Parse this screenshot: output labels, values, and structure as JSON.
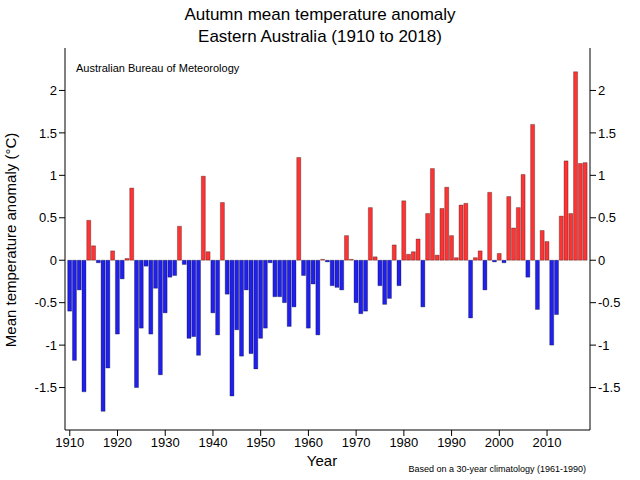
{
  "chart_data": {
    "type": "bar",
    "title": "Autumn mean temperature anomaly",
    "subtitle": "Eastern Australia (1910 to 2018)",
    "x_label": "Year",
    "y_label": "Mean temperature anomaly (°C)",
    "annotations": [
      "Australian Bureau of Meteorology",
      "Based on a 30-year climatology (1961-1990)"
    ],
    "x": [
      1910,
      1911,
      1912,
      1913,
      1914,
      1915,
      1916,
      1917,
      1918,
      1919,
      1920,
      1921,
      1922,
      1923,
      1924,
      1925,
      1926,
      1927,
      1928,
      1929,
      1930,
      1931,
      1932,
      1933,
      1934,
      1935,
      1936,
      1937,
      1938,
      1939,
      1940,
      1941,
      1942,
      1943,
      1944,
      1945,
      1946,
      1947,
      1948,
      1949,
      1950,
      1951,
      1952,
      1953,
      1954,
      1955,
      1956,
      1957,
      1958,
      1959,
      1960,
      1961,
      1962,
      1963,
      1964,
      1965,
      1966,
      1967,
      1968,
      1969,
      1970,
      1971,
      1972,
      1973,
      1974,
      1975,
      1976,
      1977,
      1978,
      1979,
      1980,
      1981,
      1982,
      1983,
      1984,
      1985,
      1986,
      1987,
      1988,
      1989,
      1990,
      1991,
      1992,
      1993,
      1994,
      1995,
      1996,
      1997,
      1998,
      1999,
      2000,
      2001,
      2002,
      2003,
      2004,
      2005,
      2006,
      2007,
      2008,
      2009,
      2010,
      2011,
      2012,
      2013,
      2014,
      2015,
      2016,
      2017,
      2018
    ],
    "values": [
      -0.6,
      -1.18,
      -0.35,
      -1.55,
      0.47,
      0.17,
      -0.03,
      -1.78,
      -1.27,
      0.11,
      -0.87,
      -0.22,
      0.02,
      0.85,
      -1.5,
      -0.8,
      -0.07,
      -0.87,
      -0.33,
      -1.35,
      -0.62,
      -0.2,
      -0.18,
      0.4,
      -0.05,
      -0.92,
      -0.9,
      -1.12,
      0.99,
      0.1,
      -0.62,
      -0.88,
      0.68,
      -0.4,
      -1.6,
      -0.82,
      -1.13,
      -0.35,
      -1.1,
      -1.28,
      -0.92,
      -0.8,
      -0.03,
      -0.43,
      -0.43,
      -0.5,
      -0.78,
      -0.55,
      1.21,
      -0.18,
      -0.8,
      -0.28,
      -0.88,
      0.01,
      -0.02,
      -0.3,
      -0.32,
      -0.35,
      0.29,
      0.01,
      -0.5,
      -0.63,
      -0.6,
      0.62,
      0.04,
      -0.3,
      -0.52,
      -0.45,
      0.18,
      -0.3,
      0.7,
      0.07,
      0.1,
      0.25,
      -0.55,
      0.55,
      1.08,
      0.06,
      0.61,
      0.86,
      0.29,
      0.03,
      0.65,
      0.67,
      -0.68,
      0.03,
      0.11,
      -0.35,
      0.8,
      -0.02,
      0.08,
      -0.03,
      0.75,
      0.38,
      0.62,
      1.01,
      -0.2,
      1.6,
      -0.58,
      0.35,
      0.22,
      -1.0,
      -0.64,
      0.52,
      1.17,
      0.55,
      2.22,
      1.14,
      1.15
    ],
    "colors": [
      "#1f1fee",
      "#1f1fee",
      "#1f1fee",
      "#1f1fee",
      "#ff3333",
      "#ff3333",
      "#1f1fee",
      "#1f1fee",
      "#1f1fee",
      "#ff3333",
      "#1f1fee",
      "#1f1fee",
      "#ff3333",
      "#ff3333",
      "#1f1fee",
      "#1f1fee",
      "#1f1fee",
      "#1f1fee",
      "#1f1fee",
      "#1f1fee",
      "#1f1fee",
      "#1f1fee",
      "#1f1fee",
      "#ff3333",
      "#1f1fee",
      "#1f1fee",
      "#1f1fee",
      "#1f1fee",
      "#ff3333",
      "#ff3333",
      "#1f1fee",
      "#1f1fee",
      "#ff3333",
      "#1f1fee",
      "#1f1fee",
      "#1f1fee",
      "#1f1fee",
      "#1f1fee",
      "#1f1fee",
      "#1f1fee",
      "#1f1fee",
      "#1f1fee",
      "#1f1fee",
      "#1f1fee",
      "#1f1fee",
      "#1f1fee",
      "#1f1fee",
      "#1f1fee",
      "#ff3333",
      "#1f1fee",
      "#1f1fee",
      "#1f1fee",
      "#1f1fee",
      "#ff3333",
      "#1f1fee",
      "#1f1fee",
      "#1f1fee",
      "#1f1fee",
      "#ff3333",
      "#ff3333",
      "#1f1fee",
      "#1f1fee",
      "#1f1fee",
      "#ff3333",
      "#ff3333",
      "#1f1fee",
      "#1f1fee",
      "#1f1fee",
      "#ff3333",
      "#1f1fee",
      "#ff3333",
      "#ff3333",
      "#ff3333",
      "#ff3333",
      "#1f1fee",
      "#ff3333",
      "#ff3333",
      "#ff3333",
      "#ff3333",
      "#ff3333",
      "#ff3333",
      "#ff3333",
      "#ff3333",
      "#ff3333",
      "#1f1fee",
      "#ff3333",
      "#ff3333",
      "#1f1fee",
      "#ff3333",
      "#1f1fee",
      "#ff3333",
      "#1f1fee",
      "#ff3333",
      "#ff3333",
      "#ff3333",
      "#ff3333",
      "#1f1fee",
      "#ff3333",
      "#1f1fee",
      "#ff3333",
      "#ff3333",
      "#1f1fee",
      "#1f1fee",
      "#ff3333",
      "#ff3333",
      "#ff3333",
      "#ff3333",
      "#ff3333",
      "#ff3333"
    ],
    "xlim": [
      1909,
      2019
    ],
    "xticks": [
      1910,
      1920,
      1930,
      1940,
      1950,
      1960,
      1970,
      1980,
      1990,
      2000,
      2010
    ],
    "ylim": [
      -2,
      2.5
    ],
    "yticks": [
      -1.5,
      -1,
      -0.5,
      0,
      0.5,
      1,
      1.5,
      2
    ],
    "grid": false
  }
}
